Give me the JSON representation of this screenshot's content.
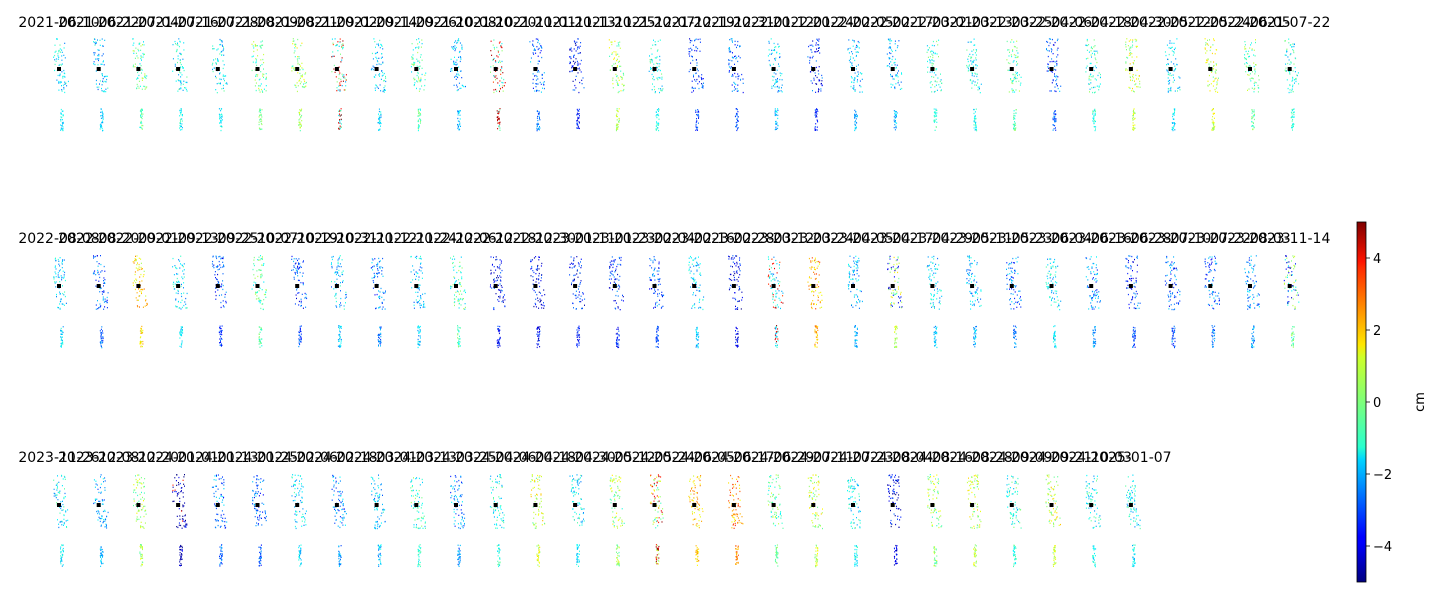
{
  "chart_data": {
    "type": "heatmap",
    "description_kind": "small-multiples displacement maps",
    "colormap": "jet",
    "colorbar": {
      "vmin": -5,
      "vmax": 5,
      "ticks": [
        4,
        2,
        0,
        -2,
        -4
      ],
      "tick_labels": [
        "4",
        "2",
        "0",
        "−2",
        "−4"
      ],
      "label": "cm",
      "placement": "right"
    },
    "panels": [
      {
        "date": "2021-06-10",
        "value": -1.5,
        "anomaly": null
      },
      {
        "date": "2021-06-22",
        "value": -1.8,
        "anomaly": null
      },
      {
        "date": "2021-07-04",
        "value": -0.4,
        "anomaly": null
      },
      {
        "date": "2021-07-16",
        "value": -1.2,
        "anomaly": null
      },
      {
        "date": "2021-07-28",
        "value": -1.4,
        "anomaly": null
      },
      {
        "date": "2021-08-09",
        "value": -0.1,
        "anomaly": null
      },
      {
        "date": "2021-08-21",
        "value": 0.3,
        "anomaly": null
      },
      {
        "date": "2021-09-02",
        "value": -1.0,
        "anomaly": "high"
      },
      {
        "date": "2021-09-14",
        "value": -1.6,
        "anomaly": null
      },
      {
        "date": "2021-09-26",
        "value": -0.6,
        "anomaly": null
      },
      {
        "date": "2021-10-08",
        "value": -2.0,
        "anomaly": null
      },
      {
        "date": "2021-10-20",
        "value": -0.8,
        "anomaly": "high"
      },
      {
        "date": "2021-11-01",
        "value": -2.6,
        "anomaly": null
      },
      {
        "date": "2021-11-13",
        "value": -3.6,
        "anomaly": null
      },
      {
        "date": "2021-11-25",
        "value": 0.4,
        "anomaly": null
      },
      {
        "date": "2021-12-07",
        "value": -1.0,
        "anomaly": null
      },
      {
        "date": "2021-12-19",
        "value": -3.2,
        "anomaly": null
      },
      {
        "date": "2021-12-31",
        "value": -2.8,
        "anomaly": null
      },
      {
        "date": "2022-01-12",
        "value": -1.9,
        "anomaly": null
      },
      {
        "date": "2022-01-24",
        "value": -3.4,
        "anomaly": null
      },
      {
        "date": "2022-02-05",
        "value": -1.9,
        "anomaly": null
      },
      {
        "date": "2022-02-17",
        "value": -1.9,
        "anomaly": null
      },
      {
        "date": "2022-03-01",
        "value": -0.9,
        "anomaly": null
      },
      {
        "date": "2022-03-13",
        "value": -1.3,
        "anomaly": null
      },
      {
        "date": "2022-03-25",
        "value": -0.5,
        "anomaly": null
      },
      {
        "date": "2022-04-06",
        "value": -2.9,
        "anomaly": null
      },
      {
        "date": "2022-04-18",
        "value": -0.9,
        "anomaly": null
      },
      {
        "date": "2022-04-30",
        "value": 0.6,
        "anomaly": null
      },
      {
        "date": "2022-05-12",
        "value": -1.5,
        "anomaly": null
      },
      {
        "date": "2022-05-24",
        "value": 0.8,
        "anomaly": null
      },
      {
        "date": "2022-06-05",
        "value": -0.3,
        "anomaly": null
      },
      {
        "date": "2021-07-22",
        "value": -1.0,
        "anomaly": null
      },
      {
        "date": "2022-08-08",
        "value": -1.6,
        "anomaly": null
      },
      {
        "date": "2022-08-20",
        "value": -2.8,
        "anomaly": null
      },
      {
        "date": "2022-09-01",
        "value": 1.5,
        "anomaly": null
      },
      {
        "date": "2022-09-13",
        "value": -1.5,
        "anomaly": null
      },
      {
        "date": "2022-09-25",
        "value": -3.1,
        "anomaly": null
      },
      {
        "date": "2022-10-07",
        "value": -0.4,
        "anomaly": null
      },
      {
        "date": "2022-10-19",
        "value": -3.1,
        "anomaly": null
      },
      {
        "date": "2022-10-31",
        "value": -1.8,
        "anomaly": null
      },
      {
        "date": "2022-11-12",
        "value": -2.6,
        "anomaly": null
      },
      {
        "date": "2022-11-24",
        "value": -1.8,
        "anomaly": null
      },
      {
        "date": "2022-12-06",
        "value": -0.6,
        "anomaly": null
      },
      {
        "date": "2022-12-18",
        "value": -3.6,
        "anomaly": null
      },
      {
        "date": "2022-12-30",
        "value": -3.7,
        "anomaly": null
      },
      {
        "date": "2023-01-11",
        "value": -3.6,
        "anomaly": null
      },
      {
        "date": "2023-01-23",
        "value": -3.4,
        "anomaly": null
      },
      {
        "date": "2023-02-04",
        "value": -2.9,
        "anomaly": null
      },
      {
        "date": "2023-02-16",
        "value": -1.8,
        "anomaly": null
      },
      {
        "date": "2023-02-28",
        "value": -3.8,
        "anomaly": null
      },
      {
        "date": "2023-03-12",
        "value": -1.5,
        "anomaly": "high"
      },
      {
        "date": "2023-03-24",
        "value": 2.0,
        "anomaly": null
      },
      {
        "date": "2023-04-05",
        "value": -1.9,
        "anomaly": null
      },
      {
        "date": "2023-04-17",
        "value": 0.5,
        "anomaly": "low"
      },
      {
        "date": "2023-04-29",
        "value": -1.6,
        "anomaly": null
      },
      {
        "date": "2023-05-11",
        "value": -1.9,
        "anomaly": null
      },
      {
        "date": "2023-05-23",
        "value": -2.6,
        "anomaly": null
      },
      {
        "date": "2023-06-04",
        "value": -1.5,
        "anomaly": null
      },
      {
        "date": "2023-06-16",
        "value": -2.4,
        "anomaly": null
      },
      {
        "date": "2023-06-28",
        "value": -3.1,
        "anomaly": null
      },
      {
        "date": "2023-07-10",
        "value": -2.9,
        "anomaly": null
      },
      {
        "date": "2023-07-22",
        "value": -2.7,
        "anomaly": null
      },
      {
        "date": "2023-08-03",
        "value": -2.3,
        "anomaly": null
      },
      {
        "date": "2023-11-14",
        "value": -0.3,
        "anomaly": "low"
      },
      {
        "date": "2023-11-26",
        "value": -1.4,
        "anomaly": null
      },
      {
        "date": "2023-12-08",
        "value": -2.0,
        "anomaly": null
      },
      {
        "date": "2023-12-20",
        "value": 0.4,
        "anomaly": null
      },
      {
        "date": "2024-01-01",
        "value": -4.4,
        "anomaly": "mixed"
      },
      {
        "date": "2024-01-13",
        "value": -2.6,
        "anomaly": null
      },
      {
        "date": "2024-01-25",
        "value": -2.9,
        "anomaly": null
      },
      {
        "date": "2024-02-06",
        "value": -1.6,
        "anomaly": null
      },
      {
        "date": "2024-02-18",
        "value": -2.4,
        "anomaly": null
      },
      {
        "date": "2024-03-01",
        "value": -1.8,
        "anomaly": null
      },
      {
        "date": "2024-03-13",
        "value": -0.8,
        "anomaly": null
      },
      {
        "date": "2024-03-25",
        "value": -2.4,
        "anomaly": null
      },
      {
        "date": "2024-04-06",
        "value": -1.0,
        "anomaly": null
      },
      {
        "date": "2024-04-18",
        "value": 0.8,
        "anomaly": null
      },
      {
        "date": "2024-04-30",
        "value": -1.5,
        "anomaly": null
      },
      {
        "date": "2024-05-12",
        "value": 0.2,
        "anomaly": null
      },
      {
        "date": "2024-05-24",
        "value": 0.3,
        "anomaly": "high"
      },
      {
        "date": "2024-06-05",
        "value": 1.8,
        "anomaly": null
      },
      {
        "date": "2024-06-17",
        "value": 2.4,
        "anomaly": null
      },
      {
        "date": "2024-06-29",
        "value": -0.4,
        "anomaly": null
      },
      {
        "date": "2024-07-11",
        "value": 0.6,
        "anomaly": null
      },
      {
        "date": "2024-07-23",
        "value": -1.2,
        "anomaly": null
      },
      {
        "date": "2024-08-04",
        "value": -3.9,
        "anomaly": null
      },
      {
        "date": "2024-08-16",
        "value": 0.2,
        "anomaly": null
      },
      {
        "date": "2024-08-28",
        "value": 0.6,
        "anomaly": null
      },
      {
        "date": "2024-09-09",
        "value": -0.9,
        "anomaly": null
      },
      {
        "date": "2024-09-21",
        "value": 0.7,
        "anomaly": null
      },
      {
        "date": "2024-10-03",
        "value": -1.2,
        "anomaly": null
      },
      {
        "date": "2025-01-07",
        "value": -1.4,
        "anomaly": null
      }
    ]
  }
}
